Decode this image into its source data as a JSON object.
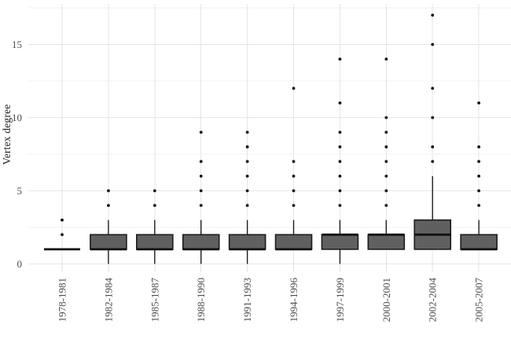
{
  "chart_data": {
    "type": "boxplot",
    "title": "",
    "xlabel": "",
    "ylabel": "Vertex degree",
    "legend": "none",
    "grid": {
      "horizontal_major": true,
      "horizontal_minor": true,
      "vertical_major_per_category": true
    },
    "y_axis": {
      "ticks": [
        0,
        5,
        10,
        15
      ],
      "minor_ticks": [
        2.5,
        7.5,
        12.5,
        17.5
      ],
      "ylim": [
        -0.6,
        17.8
      ]
    },
    "categories": [
      "1978-1981",
      "1982-1984",
      "1985-1987",
      "1988-1990",
      "1991-1993",
      "1994-1996",
      "1997-1999",
      "2000-2001",
      "2002-2004",
      "2005-2007"
    ],
    "series": [
      {
        "label": "1978-1981",
        "whisker_low": 1,
        "q1": 1,
        "median": 1,
        "q3": 1,
        "whisker_high": 1,
        "outliers": [
          2,
          3
        ]
      },
      {
        "label": "1982-1984",
        "whisker_low": 0,
        "q1": 1,
        "median": 1,
        "q3": 2,
        "whisker_high": 3,
        "outliers": [
          4,
          5
        ]
      },
      {
        "label": "1985-1987",
        "whisker_low": 0,
        "q1": 1,
        "median": 1,
        "q3": 2,
        "whisker_high": 3,
        "outliers": [
          4,
          5
        ]
      },
      {
        "label": "1988-1990",
        "whisker_low": 0,
        "q1": 1,
        "median": 1,
        "q3": 2,
        "whisker_high": 3,
        "outliers": [
          4,
          5,
          6,
          7,
          9
        ]
      },
      {
        "label": "1991-1993",
        "whisker_low": 0,
        "q1": 1,
        "median": 1,
        "q3": 2,
        "whisker_high": 3,
        "outliers": [
          4,
          5,
          6,
          7,
          8,
          9
        ]
      },
      {
        "label": "1994-1996",
        "whisker_low": 1,
        "q1": 1,
        "median": 1,
        "q3": 2,
        "whisker_high": 3,
        "outliers": [
          4,
          5,
          6,
          7,
          12
        ]
      },
      {
        "label": "1997-1999",
        "whisker_low": 0,
        "q1": 1,
        "median": 2,
        "q3": 2,
        "whisker_high": 3,
        "outliers": [
          4,
          5,
          6,
          7,
          8,
          9,
          11,
          14
        ]
      },
      {
        "label": "2000-2001",
        "whisker_low": 1,
        "q1": 1,
        "median": 2,
        "q3": 2,
        "whisker_high": 3,
        "outliers": [
          4,
          5,
          6,
          7,
          8,
          9,
          10,
          14
        ]
      },
      {
        "label": "2002-2004",
        "whisker_low": 1,
        "q1": 1,
        "median": 2,
        "q3": 3,
        "whisker_high": 6,
        "outliers": [
          7,
          8,
          10,
          12,
          15,
          17
        ]
      },
      {
        "label": "2005-2007",
        "whisker_low": 1,
        "q1": 1,
        "median": 1,
        "q3": 2,
        "whisker_high": 3,
        "outliers": [
          4,
          5,
          6,
          7,
          8,
          11
        ]
      }
    ],
    "colors": {
      "background": "#ffffff",
      "box_fill": "#606060",
      "box_border": "#1c1c1c",
      "median": "#111111",
      "whisker": "#1c1c1c",
      "outlier": "#111111",
      "grid_major": "#e6e6e6",
      "grid_minor": "#f2f2f2",
      "axis_text": "#4d4d4d",
      "axis_title": "#1a1a1a"
    }
  }
}
